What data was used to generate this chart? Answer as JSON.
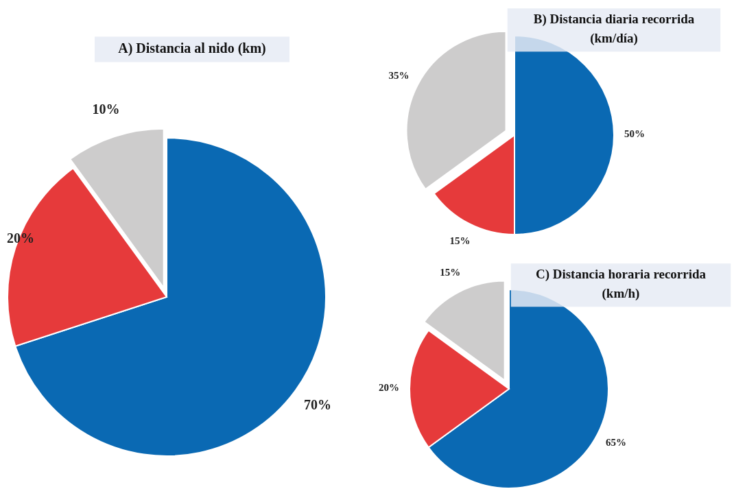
{
  "chart_data": [
    {
      "type": "pie",
      "title": "A) Distancia al nido (km)",
      "categories": [
        null,
        null,
        null
      ],
      "values": [
        70,
        20,
        10
      ],
      "colors": [
        "#0a69b3",
        "#e63a3b",
        "#cdcccc"
      ],
      "value_labels": [
        "70%",
        "20%",
        "10%"
      ]
    },
    {
      "type": "pie",
      "title": "B) Distancia diaria recorrida (km/día)",
      "categories": [
        null,
        null,
        null
      ],
      "values": [
        50,
        15,
        35
      ],
      "colors": [
        "#0a69b3",
        "#e63a3b",
        "#cdcccc"
      ],
      "value_labels": [
        "50%",
        "15%",
        "35%"
      ]
    },
    {
      "type": "pie",
      "title": "C) Distancia horaria recorrida (km/h)",
      "categories": [
        null,
        null,
        null
      ],
      "values": [
        65,
        20,
        15
      ],
      "colors": [
        "#0a69b3",
        "#e63a3b",
        "#cdcccc"
      ],
      "value_labels": [
        "65%",
        "20%",
        "15%"
      ]
    }
  ]
}
